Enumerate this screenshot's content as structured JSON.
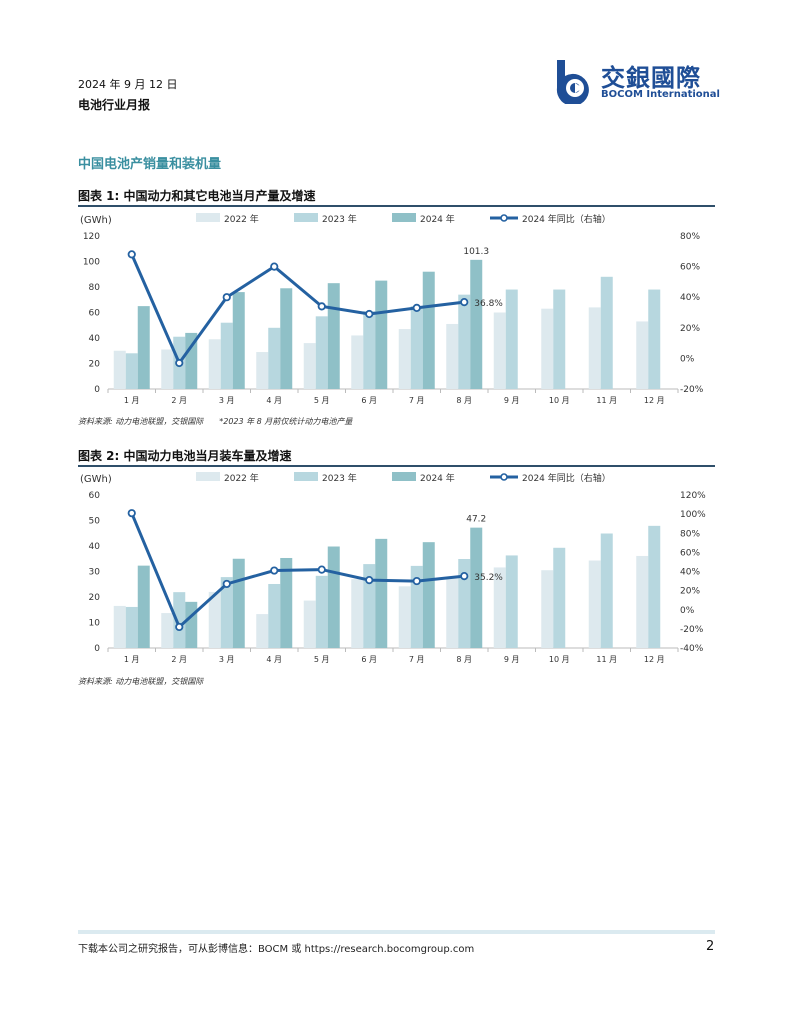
{
  "header": {
    "date": "2024 年 9 月 12 日",
    "doc_title": "电池行业月报",
    "logo_cn": "交銀國際",
    "logo_en": "BOCOM International"
  },
  "section_title": "中国电池产销量和装机量",
  "colors": {
    "c2022": "#dde9ee",
    "c2023": "#b7d7df",
    "c2024": "#8fc0c7",
    "line": "#2461a1",
    "accent": "#3a8fa0"
  },
  "figures": [
    {
      "title": "图表 1: 中国动力和其它电池当月产量及增速",
      "source": "资料来源: 动力电池联盟，交银国际　　*2023 年 8 月前仅统计动力电池产量"
    },
    {
      "title": "图表 2: 中国动力电池当月装车量及增速",
      "source": "资料来源: 动力电池联盟，交银国际"
    }
  ],
  "chart_data": [
    {
      "type": "bar",
      "categories": [
        "1 月",
        "2 月",
        "3 月",
        "4 月",
        "5 月",
        "6 月",
        "7 月",
        "8 月",
        "9 月",
        "10 月",
        "11 月",
        "12 月"
      ],
      "series": [
        {
          "name": "2022 年",
          "values": [
            30,
            31,
            39,
            29,
            36,
            42,
            47,
            51,
            60,
            63,
            64,
            53
          ]
        },
        {
          "name": "2023 年",
          "values": [
            28,
            41,
            52,
            48,
            57,
            61,
            65,
            74,
            78,
            78,
            88,
            78
          ]
        },
        {
          "name": "2024 年",
          "values": [
            65,
            44,
            76,
            79,
            83,
            85,
            92,
            101.3,
            null,
            null,
            null,
            null
          ]
        },
        {
          "name": "2024 年同比（右轴）",
          "axis": "right",
          "kind": "line",
          "values": [
            68,
            -3,
            40,
            60,
            34,
            29,
            33,
            36.8,
            null,
            null,
            null,
            null
          ]
        }
      ],
      "ylabel": "(GWh)",
      "ylim": [
        0,
        120
      ],
      "yticks": [
        "0",
        "20",
        "40",
        "60",
        "80",
        "100",
        "120"
      ],
      "y2lim": [
        -20,
        80
      ],
      "y2ticks": [
        "-20%",
        "0%",
        "20%",
        "40%",
        "60%",
        "80%"
      ],
      "annotations": [
        {
          "text": "101.3",
          "series": 2,
          "index": 7
        },
        {
          "text": "36.8%",
          "series": 3,
          "index": 7
        }
      ],
      "legend": "top"
    },
    {
      "type": "bar",
      "categories": [
        "1 月",
        "2 月",
        "3 月",
        "4 月",
        "5 月",
        "6 月",
        "7 月",
        "8 月",
        "9 月",
        "10 月",
        "11 月",
        "12 月"
      ],
      "series": [
        {
          "name": "2022 年",
          "values": [
            16.5,
            13.7,
            22,
            13.3,
            18.6,
            27,
            24.2,
            28,
            31.6,
            30.5,
            34.3,
            36.1
          ]
        },
        {
          "name": "2023 年",
          "values": [
            16.1,
            21.9,
            27.8,
            25.1,
            28.3,
            32.9,
            32.2,
            34.9,
            36.3,
            39.3,
            44.9,
            47.9
          ]
        },
        {
          "name": "2024 年",
          "values": [
            32.3,
            18.1,
            35,
            35.3,
            39.8,
            42.8,
            41.5,
            47.2,
            null,
            null,
            null,
            null
          ]
        },
        {
          "name": "2024 年同比（右轴）",
          "axis": "right",
          "kind": "line",
          "values": [
            101,
            -18,
            27,
            41,
            42,
            31,
            30,
            35.2,
            null,
            null,
            null,
            null
          ]
        }
      ],
      "ylabel": "(GWh)",
      "ylim": [
        0,
        60
      ],
      "yticks": [
        "0",
        "10",
        "20",
        "30",
        "40",
        "50",
        "60"
      ],
      "y2lim": [
        -40,
        120
      ],
      "y2ticks": [
        "-40%",
        "-20%",
        "0%",
        "20%",
        "40%",
        "60%",
        "80%",
        "100%",
        "120%"
      ],
      "annotations": [
        {
          "text": "47.2",
          "series": 2,
          "index": 7
        },
        {
          "text": "35.2%",
          "series": 3,
          "index": 7
        }
      ],
      "legend": "top"
    }
  ],
  "footer": {
    "text": "下载本公司之研究报告，可从彭博信息：BOCM 或 https://research.bocomgroup.com",
    "page": "2"
  }
}
